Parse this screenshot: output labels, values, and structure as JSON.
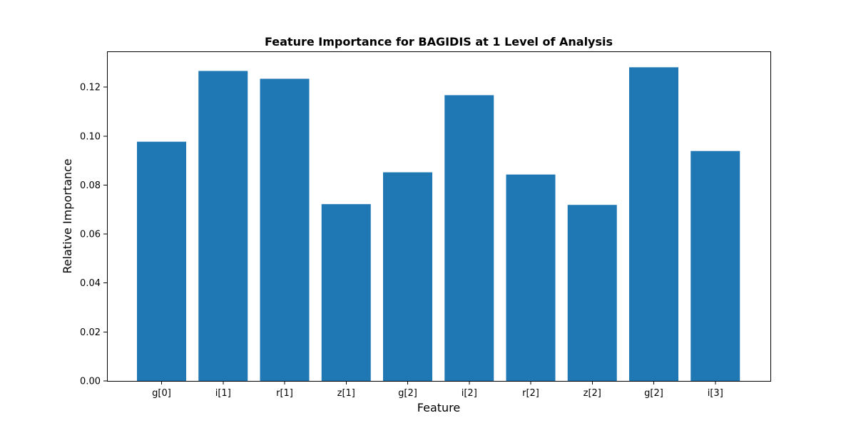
{
  "chart_data": {
    "type": "bar",
    "title": "Feature Importance for BAGIDIS at 1 Level of Analysis",
    "xlabel": "Feature",
    "ylabel": "Relative Importance",
    "categories": [
      "g[0]",
      "i[1]",
      "r[1]",
      "z[1]",
      "g[2]",
      "i[2]",
      "r[2]",
      "z[2]",
      "g[2]",
      "i[3]"
    ],
    "values": [
      0.0977,
      0.1266,
      0.1234,
      0.0722,
      0.0852,
      0.1167,
      0.0843,
      0.0719,
      0.1281,
      0.0939
    ],
    "ylim": [
      0,
      0.1346
    ],
    "yticks": [
      0.0,
      0.02,
      0.04,
      0.06,
      0.08,
      0.1,
      0.12
    ],
    "ytick_labels": [
      "0.00",
      "0.02",
      "0.04",
      "0.06",
      "0.08",
      "0.10",
      "0.12"
    ],
    "grid": false,
    "legend": "none",
    "bar_color": "#1f77b4"
  }
}
